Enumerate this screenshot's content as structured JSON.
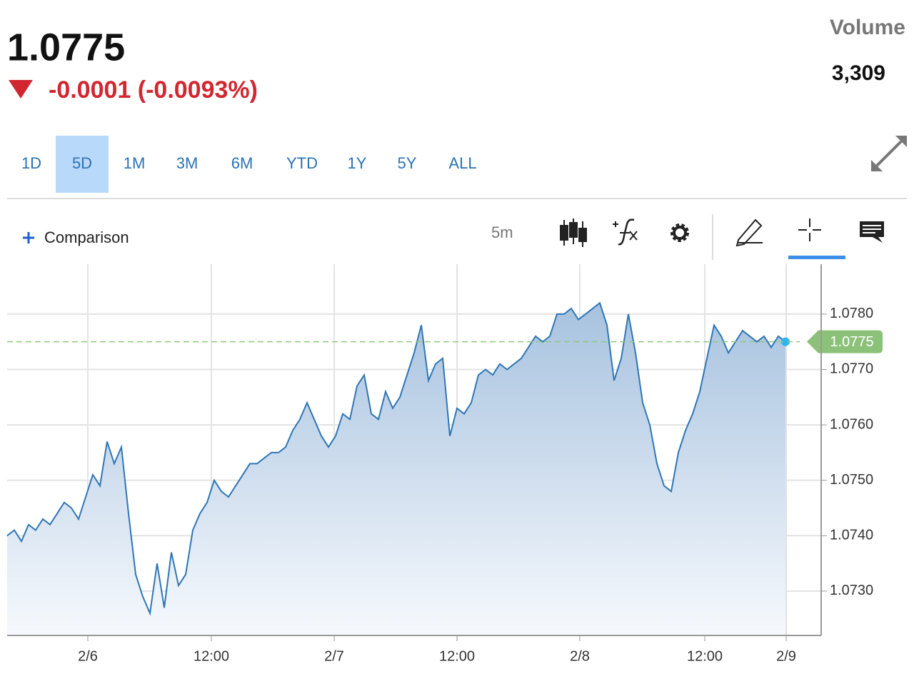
{
  "header": {
    "price": "1.0775",
    "change": "-0.0001 (-0.0093%)",
    "volume_label": "Volume",
    "volume": "3,309"
  },
  "ranges": [
    "1D",
    "5D",
    "1M",
    "3M",
    "6M",
    "YTD",
    "1Y",
    "5Y",
    "ALL"
  ],
  "selected_range": "5D",
  "toolbar": {
    "comparison": "Comparison",
    "interval": "5m"
  },
  "chart_data": {
    "type": "area",
    "color": "#2f76b5",
    "x": [
      0,
      1,
      2,
      3,
      4,
      5,
      6,
      7,
      8,
      9,
      10,
      11,
      12,
      13,
      14,
      15,
      16,
      17,
      18,
      19,
      20,
      21,
      22,
      23,
      24,
      25,
      26,
      27,
      28,
      29,
      30,
      31,
      32,
      33,
      34,
      35,
      36,
      37,
      38,
      39,
      40,
      41,
      42,
      43,
      44,
      45,
      46,
      47,
      48,
      49,
      50,
      51,
      52,
      53,
      54,
      55,
      56,
      57,
      58,
      59,
      60,
      61,
      62,
      63,
      64,
      65,
      66,
      67,
      68,
      69,
      70,
      71,
      72,
      73,
      74,
      75,
      76,
      77,
      78,
      79,
      80,
      81,
      82,
      83,
      84,
      85,
      86,
      87,
      88,
      89,
      90,
      91,
      92,
      93,
      94,
      95,
      96,
      97,
      98,
      99,
      100,
      101,
      102,
      103,
      104,
      105,
      106,
      107,
      108,
      109
    ],
    "values": [
      1.074,
      1.0741,
      1.0739,
      1.0742,
      1.0741,
      1.0743,
      1.0742,
      1.0744,
      1.0746,
      1.0745,
      1.0743,
      1.0747,
      1.0751,
      1.0749,
      1.0757,
      1.0753,
      1.0756,
      1.0744,
      1.0733,
      1.0729,
      1.0726,
      1.0735,
      1.0727,
      1.0737,
      1.0731,
      1.0733,
      1.0741,
      1.0744,
      1.0746,
      1.075,
      1.0748,
      1.0747,
      1.0749,
      1.0751,
      1.0753,
      1.0753,
      1.0754,
      1.0755,
      1.0755,
      1.0756,
      1.0759,
      1.0761,
      1.0764,
      1.0761,
      1.0758,
      1.0756,
      1.0758,
      1.0762,
      1.0761,
      1.0767,
      1.0769,
      1.0762,
      1.0761,
      1.0766,
      1.0763,
      1.0765,
      1.0769,
      1.0773,
      1.0778,
      1.0768,
      1.0771,
      1.0772,
      1.0758,
      1.0763,
      1.0762,
      1.0764,
      1.0769,
      1.077,
      1.0769,
      1.0771,
      1.077,
      1.0771,
      1.0772,
      1.0774,
      1.0776,
      1.0775,
      1.0776,
      1.078,
      1.078,
      1.0781,
      1.0779,
      1.078,
      1.0781,
      1.0782,
      1.0778,
      1.0768,
      1.0772,
      1.078,
      1.0773,
      1.0764,
      1.076,
      1.0753,
      1.0749,
      1.0748,
      1.0755,
      1.0759,
      1.0762,
      1.0766,
      1.0772,
      1.0778,
      1.0776,
      1.0773,
      1.0775,
      1.0777,
      1.0776,
      1.0775,
      1.0776,
      1.0774,
      1.0776,
      1.0775
    ],
    "xlim": [
      0,
      114
    ],
    "xticks": [
      {
        "value": 11.3,
        "label": "2/6"
      },
      {
        "value": 28.6,
        "label": "12:00"
      },
      {
        "value": 45.8,
        "label": "2/7"
      },
      {
        "value": 63,
        "label": "12:00"
      },
      {
        "value": 80.2,
        "label": "2/8"
      },
      {
        "value": 97.7,
        "label": "12:00"
      },
      {
        "value": 109.1,
        "label": "2/9"
      }
    ],
    "ylim": [
      1.0722,
      1.0789
    ],
    "yticks": [
      {
        "value": 1.073,
        "label": "1.0730"
      },
      {
        "value": 1.074,
        "label": "1.0740"
      },
      {
        "value": 1.075,
        "label": "1.0750"
      },
      {
        "value": 1.076,
        "label": "1.0760"
      },
      {
        "value": 1.077,
        "label": "1.0770"
      },
      {
        "value": 1.078,
        "label": "1.0780"
      }
    ],
    "last_value": 1.0775,
    "grid": true
  }
}
